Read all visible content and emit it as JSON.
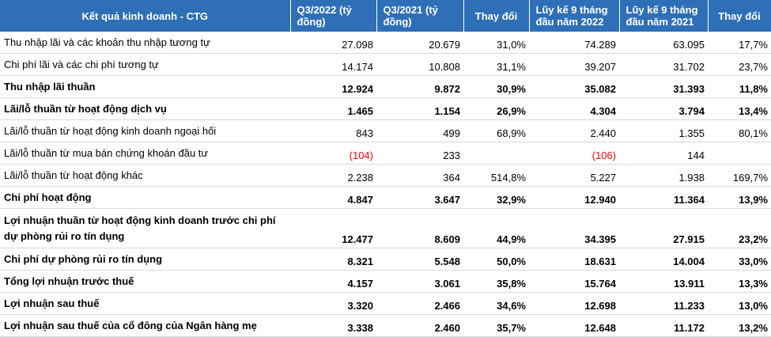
{
  "header": {
    "title": "Kết quả kinh doanh - CTG",
    "col1": "Q3/2022 (tỷ đồng)",
    "col2": "Q3/2021 (tỷ đồng)",
    "col3": "Thay đổi",
    "col4": "Lũy kế 9 tháng đầu năm 2022",
    "col5": "Lũy kế 9 tháng đầu năm 2021",
    "col6": "Thay đổi"
  },
  "rows": [
    {
      "label": "Thu nhập lãi và các khoản thu nhập tương tự",
      "q3_2022": "27.098",
      "q3_2021": "20.679",
      "change_q": "31,0%",
      "ytd_2022": "74.289",
      "ytd_2021": "63.095",
      "change_ytd": "17,7%"
    },
    {
      "label": "Chi phí lãi và các chi phí tương tự",
      "q3_2022": "14.174",
      "q3_2021": "10.808",
      "change_q": "31,1%",
      "ytd_2022": "39.207",
      "ytd_2021": "31.702",
      "change_ytd": "23,7%"
    },
    {
      "label": "Thu nhập lãi thuần",
      "q3_2022": "12.924",
      "q3_2021": "9.872",
      "change_q": "30,9%",
      "ytd_2022": "35.082",
      "ytd_2021": "31.393",
      "change_ytd": "11,8%"
    },
    {
      "label": "Lãi/lỗ thuần từ hoạt động dịch vụ",
      "q3_2022": "1.465",
      "q3_2021": "1.154",
      "change_q": "26,9%",
      "ytd_2022": "4.304",
      "ytd_2021": "3.794",
      "change_ytd": "13,4%"
    },
    {
      "label": "Lãi/lỗ thuần từ hoạt động kinh doanh ngoại hối",
      "q3_2022": "843",
      "q3_2021": "499",
      "change_q": "68,9%",
      "ytd_2022": "2.440",
      "ytd_2021": "1.355",
      "change_ytd": "80,1%"
    },
    {
      "label": "Lãi/lỗ thuần từ mua bán chứng khoán đầu tư",
      "q3_2022": "(104)",
      "q3_2021": "233",
      "change_q": "",
      "ytd_2022": "(106)",
      "ytd_2021": "144",
      "change_ytd": ""
    },
    {
      "label": "Lãi/lỗ thuần từ hoạt động khác",
      "q3_2022": "2.238",
      "q3_2021": "364",
      "change_q": "514,8%",
      "ytd_2022": "5.227",
      "ytd_2021": "1.938",
      "change_ytd": "169,7%"
    },
    {
      "label": "Chi phí hoạt động",
      "q3_2022": "4.847",
      "q3_2021": "3.647",
      "change_q": "32,9%",
      "ytd_2022": "12.940",
      "ytd_2021": "11.364",
      "change_ytd": "13,9%"
    },
    {
      "label": "Lợi nhuận thuần từ hoạt động kinh doanh trước chi phí dự phòng rủi ro tín dụng",
      "q3_2022": "12.477",
      "q3_2021": "8.609",
      "change_q": "44,9%",
      "ytd_2022": "34.395",
      "ytd_2021": "27.915",
      "change_ytd": "23,2%"
    },
    {
      "label": "Chi phí dự phòng rủi ro tín dụng",
      "q3_2022": "8.321",
      "q3_2021": "5.548",
      "change_q": "50,0%",
      "ytd_2022": "18.631",
      "ytd_2021": "14.004",
      "change_ytd": "33,0%"
    },
    {
      "label": "Tổng lợi nhuận trước thuế",
      "q3_2022": "4.157",
      "q3_2021": "3.061",
      "change_q": "35,8%",
      "ytd_2022": "15.764",
      "ytd_2021": "13.911",
      "change_ytd": "13,3%"
    },
    {
      "label": "Lợi nhuận sau thuế",
      "q3_2022": "3.320",
      "q3_2021": "2.466",
      "change_q": "34,6%",
      "ytd_2022": "12.698",
      "ytd_2021": "11.233",
      "change_ytd": "13,0%"
    },
    {
      "label": "Lợi nhuận sau thuế của cổ đông của Ngân hàng mẹ",
      "q3_2022": "3.338",
      "q3_2021": "2.460",
      "change_q": "35,7%",
      "ytd_2022": "12.648",
      "ytd_2021": "11.172",
      "change_ytd": "13,2%"
    }
  ],
  "colors": {
    "header_bg": "#2e6fb8",
    "header_text": "#ffffff",
    "negative": "#ff0000",
    "row_divider": "#d9d9d9"
  }
}
